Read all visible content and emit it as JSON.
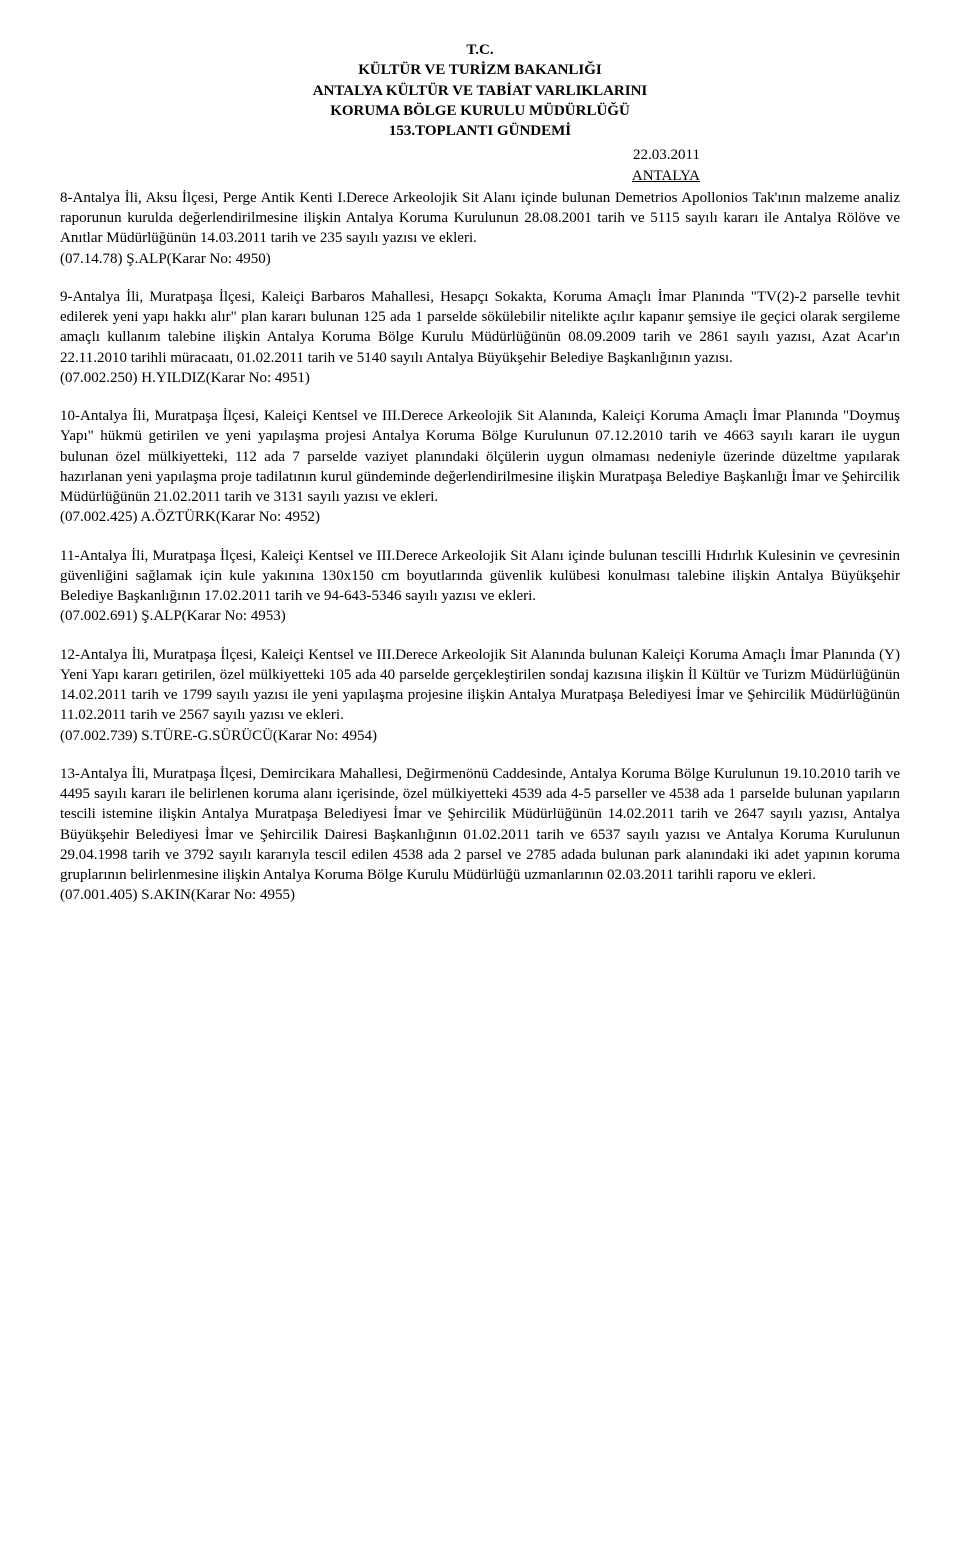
{
  "header": {
    "line1": "T.C.",
    "line2": "KÜLTÜR VE TURİZM BAKANLIĞI",
    "line3": "ANTALYA KÜLTÜR VE TABİAT VARLIKLARINI",
    "line4": "KORUMA BÖLGE KURULU MÜDÜRLÜĞÜ",
    "line5": "153.TOPLANTI GÜNDEMİ"
  },
  "meta": {
    "date": "22.03.2011",
    "location": "ANTALYA"
  },
  "items": [
    {
      "body": "8-Antalya İli, Aksu İlçesi, Perge Antik Kenti I.Derece Arkeolojik Sit Alanı içinde bulunan Demetrios Apollonios Tak'ının malzeme analiz raporunun kurulda değerlendirilmesine ilişkin Antalya Koruma Kurulunun 28.08.2001 tarih ve 5115 sayılı kararı ile Antalya Rölöve ve Anıtlar Müdürlüğünün 14.03.2011 tarih ve 235 sayılı yazısı ve ekleri.",
      "ref": "(07.14.78) Ş.ALP(Karar No: 4950)"
    },
    {
      "body": "9-Antalya İli, Muratpaşa İlçesi, Kaleiçi Barbaros Mahallesi, Hesapçı Sokakta, Koruma Amaçlı İmar Planında \"TV(2)-2 parselle tevhit edilerek yeni yapı hakkı alır\" plan kararı bulunan 125 ada 1 parselde sökülebilir nitelikte açılır kapanır şemsiye ile geçici olarak sergileme amaçlı kullanım talebine ilişkin Antalya Koruma Bölge Kurulu Müdürlüğünün 08.09.2009 tarih ve 2861 sayılı yazısı, Azat Acar'ın 22.11.2010 tarihli müracaatı, 01.02.2011 tarih ve 5140 sayılı Antalya Büyükşehir Belediye Başkanlığının yazısı.",
      "ref": "(07.002.250) H.YILDIZ(Karar No: 4951)"
    },
    {
      "body": "10-Antalya İli, Muratpaşa İlçesi, Kaleiçi Kentsel ve III.Derece Arkeolojik Sit Alanında, Kaleiçi Koruma Amaçlı İmar Planında \"Doymuş Yapı\" hükmü getirilen ve yeni yapılaşma projesi Antalya Koruma Bölge Kurulunun 07.12.2010 tarih ve 4663 sayılı kararı ile uygun bulunan özel mülkiyetteki, 112 ada 7 parselde vaziyet planındaki ölçülerin uygun olmaması nedeniyle üzerinde düzeltme yapılarak hazırlanan yeni yapılaşma proje tadilatının kurul gündeminde değerlendirilmesine ilişkin Muratpaşa Belediye Başkanlığı İmar ve Şehircilik Müdürlüğünün 21.02.2011 tarih ve 3131 sayılı yazısı ve ekleri.",
      "ref": "(07.002.425) A.ÖZTÜRK(Karar No: 4952)"
    },
    {
      "body": "11-Antalya İli, Muratpaşa İlçesi, Kaleiçi Kentsel ve III.Derece Arkeolojik Sit Alanı içinde bulunan tescilli Hıdırlık Kulesinin ve çevresinin güvenliğini sağlamak için kule yakınına 130x150 cm boyutlarında güvenlik kulübesi konulması talebine ilişkin Antalya Büyükşehir Belediye Başkanlığının 17.02.2011 tarih ve 94-643-5346 sayılı yazısı ve ekleri.",
      "ref": "(07.002.691) Ş.ALP(Karar No: 4953)"
    },
    {
      "body": "12-Antalya İli, Muratpaşa İlçesi, Kaleiçi Kentsel ve III.Derece Arkeolojik Sit Alanında bulunan Kaleiçi Koruma Amaçlı İmar Planında (Y) Yeni Yapı kararı getirilen, özel mülkiyetteki 105 ada 40 parselde gerçekleştirilen sondaj kazısına ilişkin İl Kültür ve Turizm Müdürlüğünün 14.02.2011 tarih ve 1799 sayılı yazısı ile yeni yapılaşma projesine ilişkin Antalya Muratpaşa Belediyesi İmar ve Şehircilik Müdürlüğünün 11.02.2011 tarih ve 2567 sayılı yazısı ve ekleri.",
      "ref": "(07.002.739) S.TÜRE-G.SÜRÜCÜ(Karar No: 4954)"
    },
    {
      "body": "13-Antalya İli, Muratpaşa İlçesi, Demircikara Mahallesi, Değirmenönü Caddesinde, Antalya Koruma Bölge Kurulunun 19.10.2010 tarih ve 4495 sayılı kararı ile belirlenen koruma alanı içerisinde, özel mülkiyetteki 4539 ada 4-5 parseller ve 4538 ada 1 parselde bulunan yapıların tescili istemine ilişkin Antalya Muratpaşa Belediyesi İmar ve Şehircilik Müdürlüğünün 14.02.2011 tarih ve 2647 sayılı yazısı, Antalya Büyükşehir Belediyesi İmar ve Şehircilik Dairesi Başkanlığının 01.02.2011 tarih ve 6537 sayılı yazısı ve Antalya Koruma Kurulunun 29.04.1998 tarih ve 3792 sayılı kararıyla tescil edilen 4538 ada 2 parsel ve 2785 adada bulunan park alanındaki iki adet yapının koruma gruplarının belirlenmesine ilişkin Antalya Koruma Bölge Kurulu Müdürlüğü uzmanlarının 02.03.2011 tarihli raporu ve ekleri.",
      "ref": "(07.001.405) S.AKIN(Karar No: 4955)"
    }
  ]
}
